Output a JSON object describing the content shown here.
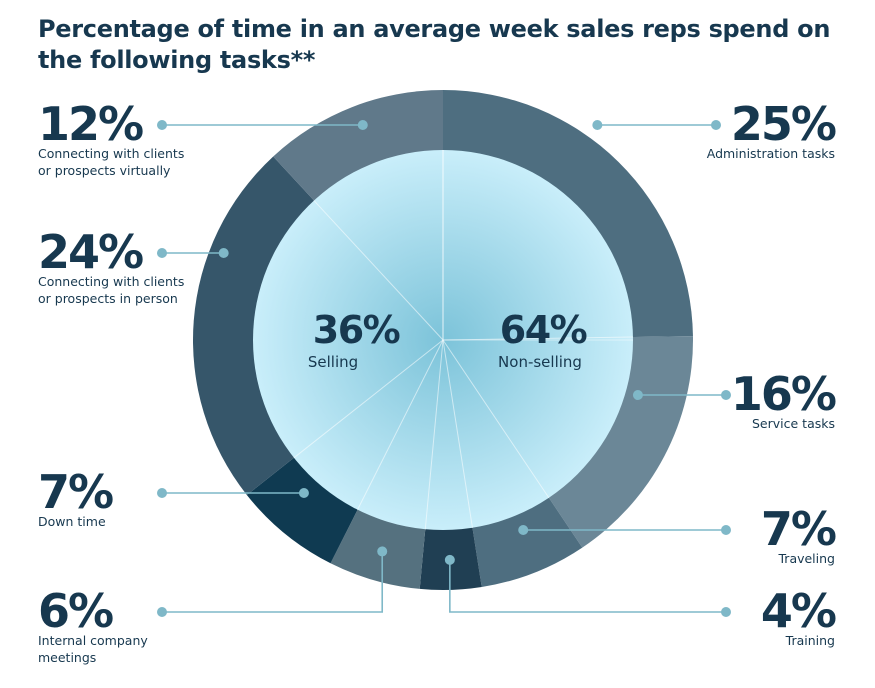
{
  "title": "Percentage of time in an average week sales reps spend on the following tasks**",
  "chart_data": {
    "type": "pie",
    "title": "Percentage of time in an average week sales reps spend on the following tasks**",
    "inner": [
      {
        "name": "Selling",
        "value": 36,
        "label": "36%"
      },
      {
        "name": "Non-selling",
        "value": 64,
        "label": "64%"
      }
    ],
    "segments": [
      {
        "name": "Administration tasks",
        "value": 25,
        "label": "25%",
        "lines": [
          "Administration tasks"
        ],
        "group": "Non-selling",
        "color": "#4e6e80"
      },
      {
        "name": "Service tasks",
        "value": 16,
        "label": "16%",
        "lines": [
          "Service tasks"
        ],
        "group": "Non-selling",
        "color": "#6b8797"
      },
      {
        "name": "Traveling",
        "value": 7,
        "label": "7%",
        "lines": [
          "Traveling"
        ],
        "group": "Non-selling",
        "color": "#4e6e80"
      },
      {
        "name": "Training",
        "value": 4,
        "label": "4%",
        "lines": [
          "Training"
        ],
        "group": "Non-selling",
        "color": "#203f53"
      },
      {
        "name": "Internal company meetings",
        "value": 6,
        "label": "6%",
        "lines": [
          "Internal company",
          "meetings"
        ],
        "group": "Non-selling",
        "color": "#55717f"
      },
      {
        "name": "Down time",
        "value": 7,
        "label": "7%",
        "lines": [
          "Down time"
        ],
        "group": "Non-selling",
        "color": "#0f3a51"
      },
      {
        "name": "Connecting with clients or prospects in person",
        "value": 24,
        "label": "24%",
        "lines": [
          "Connecting with clients",
          "or prospects in person"
        ],
        "group": "Selling",
        "color": "#36566a"
      },
      {
        "name": "Connecting with clients or prospects virtually",
        "value": 12,
        "label": "12%",
        "lines": [
          "Connecting with clients",
          "or prospects virtually"
        ],
        "group": "Selling",
        "color": "#60798a"
      }
    ],
    "colors": {
      "title": "#17384f",
      "leader": "#7fb8c8",
      "inner_light": "#c9eefa",
      "inner_dark": "#7cc3d9"
    }
  }
}
